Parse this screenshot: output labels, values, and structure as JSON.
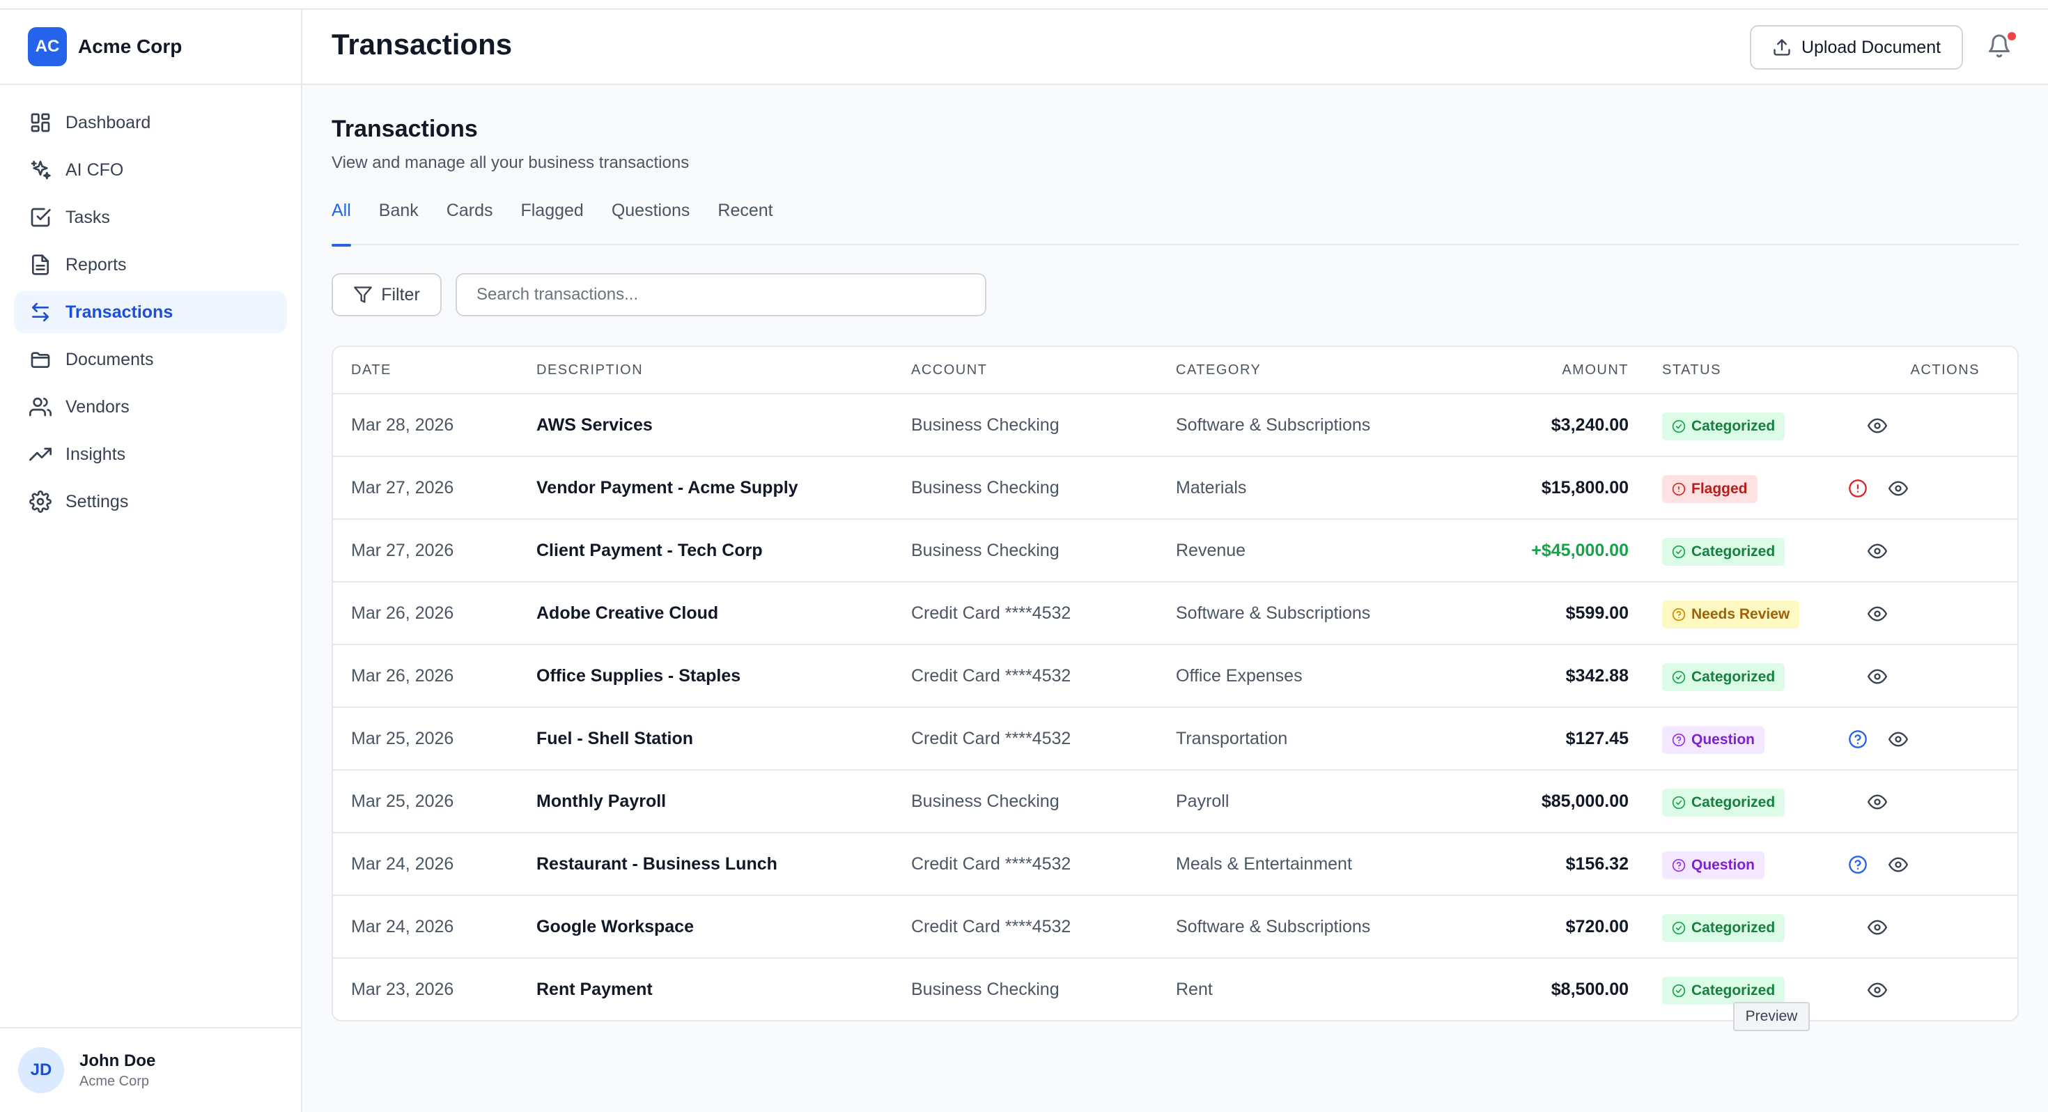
{
  "brand": {
    "logo": "AC",
    "name": "Acme Corp"
  },
  "sidebar": {
    "items": [
      {
        "label": "Dashboard",
        "icon": "dashboard-icon",
        "active": false
      },
      {
        "label": "AI CFO",
        "icon": "sparkles-icon",
        "active": false
      },
      {
        "label": "Tasks",
        "icon": "checkbox-icon",
        "active": false
      },
      {
        "label": "Reports",
        "icon": "file-text-icon",
        "active": false
      },
      {
        "label": "Transactions",
        "icon": "arrows-exchange-icon",
        "active": true
      },
      {
        "label": "Documents",
        "icon": "folder-icon",
        "active": false
      },
      {
        "label": "Vendors",
        "icon": "users-icon",
        "active": false
      },
      {
        "label": "Insights",
        "icon": "trending-up-icon",
        "active": false
      },
      {
        "label": "Settings",
        "icon": "gear-icon",
        "active": false
      }
    ]
  },
  "user": {
    "initials": "JD",
    "name": "John Doe",
    "org": "Acme Corp"
  },
  "header": {
    "title": "Transactions",
    "upload_label": "Upload Document"
  },
  "main": {
    "title": "Transactions",
    "subtitle": "View and manage all your business transactions",
    "tabs": [
      "All",
      "Bank",
      "Cards",
      "Flagged",
      "Questions",
      "Recent"
    ],
    "active_tab": "All",
    "filter_label": "Filter",
    "search_placeholder": "Search transactions..."
  },
  "table": {
    "columns": [
      "DATE",
      "DESCRIPTION",
      "ACCOUNT",
      "CATEGORY",
      "AMOUNT",
      "STATUS",
      "ACTIONS"
    ],
    "rows": [
      {
        "date": "Mar 28, 2026",
        "description": "AWS Services",
        "account": "Business Checking",
        "category": "Software & Subscriptions",
        "amount": "$3,240.00",
        "positive": false,
        "status": "Categorized",
        "status_type": "categorized",
        "extra_action": null
      },
      {
        "date": "Mar 27, 2026",
        "description": "Vendor Payment - Acme Supply",
        "account": "Business Checking",
        "category": "Materials",
        "amount": "$15,800.00",
        "positive": false,
        "status": "Flagged",
        "status_type": "flagged",
        "extra_action": "alert"
      },
      {
        "date": "Mar 27, 2026",
        "description": "Client Payment - Tech Corp",
        "account": "Business Checking",
        "category": "Revenue",
        "amount": "+$45,000.00",
        "positive": true,
        "status": "Categorized",
        "status_type": "categorized",
        "extra_action": null
      },
      {
        "date": "Mar 26, 2026",
        "description": "Adobe Creative Cloud",
        "account": "Credit Card ****4532",
        "category": "Software & Subscriptions",
        "amount": "$599.00",
        "positive": false,
        "status": "Needs Review",
        "status_type": "review",
        "extra_action": null
      },
      {
        "date": "Mar 26, 2026",
        "description": "Office Supplies - Staples",
        "account": "Credit Card ****4532",
        "category": "Office Expenses",
        "amount": "$342.88",
        "positive": false,
        "status": "Categorized",
        "status_type": "categorized",
        "extra_action": null
      },
      {
        "date": "Mar 25, 2026",
        "description": "Fuel - Shell Station",
        "account": "Credit Card ****4532",
        "category": "Transportation",
        "amount": "$127.45",
        "positive": false,
        "status": "Question",
        "status_type": "question",
        "extra_action": "question"
      },
      {
        "date": "Mar 25, 2026",
        "description": "Monthly Payroll",
        "account": "Business Checking",
        "category": "Payroll",
        "amount": "$85,000.00",
        "positive": false,
        "status": "Categorized",
        "status_type": "categorized",
        "extra_action": null
      },
      {
        "date": "Mar 24, 2026",
        "description": "Restaurant - Business Lunch",
        "account": "Credit Card ****4532",
        "category": "Meals & Entertainment",
        "amount": "$156.32",
        "positive": false,
        "status": "Question",
        "status_type": "question",
        "extra_action": "question"
      },
      {
        "date": "Mar 24, 2026",
        "description": "Google Workspace",
        "account": "Credit Card ****4532",
        "category": "Software & Subscriptions",
        "amount": "$720.00",
        "positive": false,
        "status": "Categorized",
        "status_type": "categorized",
        "extra_action": null
      },
      {
        "date": "Mar 23, 2026",
        "description": "Rent Payment",
        "account": "Business Checking",
        "category": "Rent",
        "amount": "$8,500.00",
        "positive": false,
        "status": "Categorized",
        "status_type": "categorized",
        "extra_action": null
      }
    ]
  },
  "tooltip": {
    "text": "Preview"
  },
  "colors": {
    "accent": "#2563eb",
    "positive": "#16a34a",
    "danger": "#ef4444"
  }
}
